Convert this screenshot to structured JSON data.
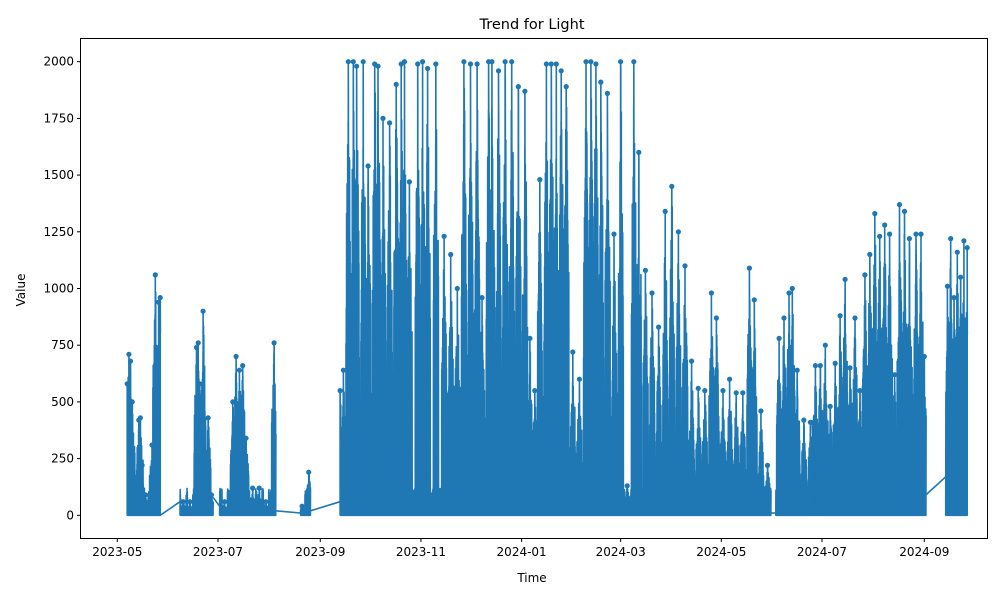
{
  "chart_data": {
    "type": "line",
    "title": "Trend for Light",
    "xlabel": "Time",
    "ylabel": "Value",
    "x_range": [
      "2023-04-09",
      "2024-10-09"
    ],
    "ylim": [
      -100,
      2100
    ],
    "x_ticks": [
      "2023-05",
      "2023-07",
      "2023-09",
      "2023-11",
      "2024-01",
      "2024-03",
      "2024-05",
      "2024-07",
      "2024-09"
    ],
    "y_ticks": [
      0,
      250,
      500,
      750,
      1000,
      1250,
      1500,
      1750,
      2000
    ],
    "grid": false,
    "legend": "none",
    "series": [
      {
        "color": "#1f77b4",
        "marker": "circle",
        "segments": [
          {
            "start": "2023-05-07",
            "end": "2023-05-27",
            "peaks": [
              [
                "2023-05-07",
                580
              ],
              [
                "2023-05-08",
                710
              ],
              [
                "2023-05-09",
                680
              ],
              [
                "2023-05-10",
                500
              ],
              [
                "2023-05-11",
                150
              ],
              [
                "2023-05-14",
                420
              ],
              [
                "2023-05-15",
                430
              ],
              [
                "2023-05-16",
                220
              ],
              [
                "2023-05-18",
                90
              ],
              [
                "2023-05-22",
                310
              ],
              [
                "2023-05-24",
                1060
              ],
              [
                "2023-05-26",
                940
              ],
              [
                "2023-05-27",
                960
              ]
            ]
          },
          {
            "start": "2023-06-08",
            "end": "2023-06-28",
            "peaks": [
              [
                "2023-06-10",
                60
              ],
              [
                "2023-06-14",
                60
              ],
              [
                "2023-06-18",
                740
              ],
              [
                "2023-06-19",
                760
              ],
              [
                "2023-06-20",
                580
              ],
              [
                "2023-06-22",
                900
              ],
              [
                "2023-06-25",
                430
              ],
              [
                "2023-06-27",
                90
              ]
            ]
          },
          {
            "start": "2023-07-02",
            "end": "2023-08-05",
            "peaks": [
              [
                "2023-07-05",
                60
              ],
              [
                "2023-07-10",
                500
              ],
              [
                "2023-07-12",
                700
              ],
              [
                "2023-07-14",
                640
              ],
              [
                "2023-07-16",
                660
              ],
              [
                "2023-07-18",
                340
              ],
              [
                "2023-07-22",
                120
              ],
              [
                "2023-07-26",
                120
              ],
              [
                "2023-07-30",
                60
              ],
              [
                "2023-08-04",
                760
              ]
            ]
          },
          {
            "start": "2023-08-20",
            "end": "2023-08-26",
            "peaks": [
              [
                "2023-08-21",
                40
              ],
              [
                "2023-08-25",
                190
              ]
            ]
          },
          {
            "start": "2023-09-13",
            "end": "2024-03-14",
            "peaks": [
              [
                "2023-09-13",
                550
              ],
              [
                "2023-09-15",
                640
              ],
              [
                "2023-09-18",
                2000
              ],
              [
                "2023-09-21",
                2000
              ],
              [
                "2023-09-23",
                1980
              ],
              [
                "2023-09-27",
                2000
              ],
              [
                "2023-09-30",
                1540
              ],
              [
                "2023-10-04",
                1990
              ],
              [
                "2023-10-06",
                1980
              ],
              [
                "2023-10-09",
                1750
              ],
              [
                "2023-10-13",
                1730
              ],
              [
                "2023-10-17",
                1900
              ],
              [
                "2023-10-20",
                1990
              ],
              [
                "2023-10-22",
                2000
              ],
              [
                "2023-10-25",
                1470
              ],
              [
                "2023-10-30",
                1990
              ],
              [
                "2023-11-02",
                2000
              ],
              [
                "2023-11-05",
                1970
              ],
              [
                "2023-11-10",
                1990
              ],
              [
                "2023-11-15",
                1230
              ],
              [
                "2023-11-19",
                1150
              ],
              [
                "2023-11-23",
                1000
              ],
              [
                "2023-11-27",
                2000
              ],
              [
                "2023-12-01",
                1990
              ],
              [
                "2023-12-05",
                1990
              ],
              [
                "2023-12-08",
                960
              ],
              [
                "2023-12-12",
                2000
              ],
              [
                "2023-12-14",
                2000
              ],
              [
                "2023-12-18",
                1960
              ],
              [
                "2023-12-22",
                2000
              ],
              [
                "2023-12-26",
                2000
              ],
              [
                "2023-12-30",
                1890
              ],
              [
                "2024-01-03",
                1870
              ],
              [
                "2024-01-06",
                780
              ],
              [
                "2024-01-09",
                550
              ],
              [
                "2024-01-12",
                1480
              ],
              [
                "2024-01-16",
                1990
              ],
              [
                "2024-01-19",
                1990
              ],
              [
                "2024-01-22",
                1990
              ],
              [
                "2024-01-25",
                1960
              ],
              [
                "2024-01-28",
                1890
              ],
              [
                "2024-02-01",
                720
              ],
              [
                "2024-02-05",
                600
              ],
              [
                "2024-02-09",
                2000
              ],
              [
                "2024-02-12",
                2000
              ],
              [
                "2024-02-15",
                1990
              ],
              [
                "2024-02-18",
                1910
              ],
              [
                "2024-02-22",
                1860
              ],
              [
                "2024-02-26",
                1240
              ],
              [
                "2024-03-01",
                2000
              ],
              [
                "2024-03-05",
                130
              ],
              [
                "2024-03-09",
                2000
              ],
              [
                "2024-03-12",
                1600
              ]
            ]
          },
          {
            "start": "2024-03-14",
            "end": "2024-05-31",
            "peaks": [
              [
                "2024-03-16",
                1080
              ],
              [
                "2024-03-20",
                980
              ],
              [
                "2024-03-24",
                830
              ],
              [
                "2024-03-28",
                1340
              ],
              [
                "2024-04-01",
                1450
              ],
              [
                "2024-04-05",
                1250
              ],
              [
                "2024-04-09",
                1100
              ],
              [
                "2024-04-13",
                680
              ],
              [
                "2024-04-17",
                560
              ],
              [
                "2024-04-21",
                550
              ],
              [
                "2024-04-25",
                980
              ],
              [
                "2024-04-28",
                870
              ],
              [
                "2024-05-02",
                550
              ],
              [
                "2024-05-06",
                600
              ],
              [
                "2024-05-10",
                540
              ],
              [
                "2024-05-14",
                540
              ],
              [
                "2024-05-18",
                1090
              ],
              [
                "2024-05-21",
                950
              ],
              [
                "2024-05-25",
                460
              ],
              [
                "2024-05-29",
                220
              ]
            ]
          },
          {
            "start": "2024-06-03",
            "end": "2024-06-25",
            "peaks": [
              [
                "2024-06-05",
                780
              ],
              [
                "2024-06-08",
                870
              ],
              [
                "2024-06-11",
                980
              ],
              [
                "2024-06-13",
                1000
              ],
              [
                "2024-06-16",
                640
              ],
              [
                "2024-06-20",
                420
              ],
              [
                "2024-06-24",
                410
              ]
            ]
          },
          {
            "start": "2024-06-25",
            "end": "2024-09-02",
            "peaks": [
              [
                "2024-06-27",
                660
              ],
              [
                "2024-06-30",
                660
              ],
              [
                "2024-07-03",
                750
              ],
              [
                "2024-07-06",
                480
              ],
              [
                "2024-07-09",
                670
              ],
              [
                "2024-07-12",
                880
              ],
              [
                "2024-07-15",
                1040
              ],
              [
                "2024-07-18",
                650
              ],
              [
                "2024-07-21",
                870
              ],
              [
                "2024-07-24",
                550
              ],
              [
                "2024-07-27",
                1060
              ],
              [
                "2024-07-30",
                1150
              ],
              [
                "2024-08-02",
                1330
              ],
              [
                "2024-08-05",
                1230
              ],
              [
                "2024-08-08",
                1280
              ],
              [
                "2024-08-11",
                1240
              ],
              [
                "2024-08-14",
                620
              ],
              [
                "2024-08-17",
                1370
              ],
              [
                "2024-08-20",
                1340
              ],
              [
                "2024-08-23",
                1220
              ],
              [
                "2024-08-27",
                1240
              ],
              [
                "2024-08-30",
                1240
              ],
              [
                "2024-09-01",
                700
              ]
            ]
          },
          {
            "start": "2024-09-14",
            "end": "2024-09-27",
            "peaks": [
              [
                "2024-09-15",
                1010
              ],
              [
                "2024-09-17",
                1220
              ],
              [
                "2024-09-19",
                960
              ],
              [
                "2024-09-21",
                1160
              ],
              [
                "2024-09-23",
                1050
              ],
              [
                "2024-09-25",
                1210
              ],
              [
                "2024-09-27",
                1180
              ]
            ]
          }
        ],
        "connectors": [
          [
            [
              "2023-05-27",
              0
            ],
            [
              "2023-06-08",
              60
            ]
          ],
          [
            [
              "2023-06-28",
              80
            ],
            [
              "2023-07-02",
              40
            ]
          ],
          [
            [
              "2023-08-05",
              20
            ],
            [
              "2023-08-20",
              10
            ]
          ],
          [
            [
              "2023-08-26",
              20
            ],
            [
              "2023-09-13",
              60
            ]
          ],
          [
            [
              "2024-05-31",
              10
            ],
            [
              "2024-06-03",
              10
            ]
          ],
          [
            [
              "2024-06-25",
              420
            ],
            [
              "2024-06-27",
              10
            ]
          ],
          [
            [
              "2024-09-02",
              90
            ],
            [
              "2024-09-14",
              170
            ]
          ]
        ]
      }
    ]
  }
}
